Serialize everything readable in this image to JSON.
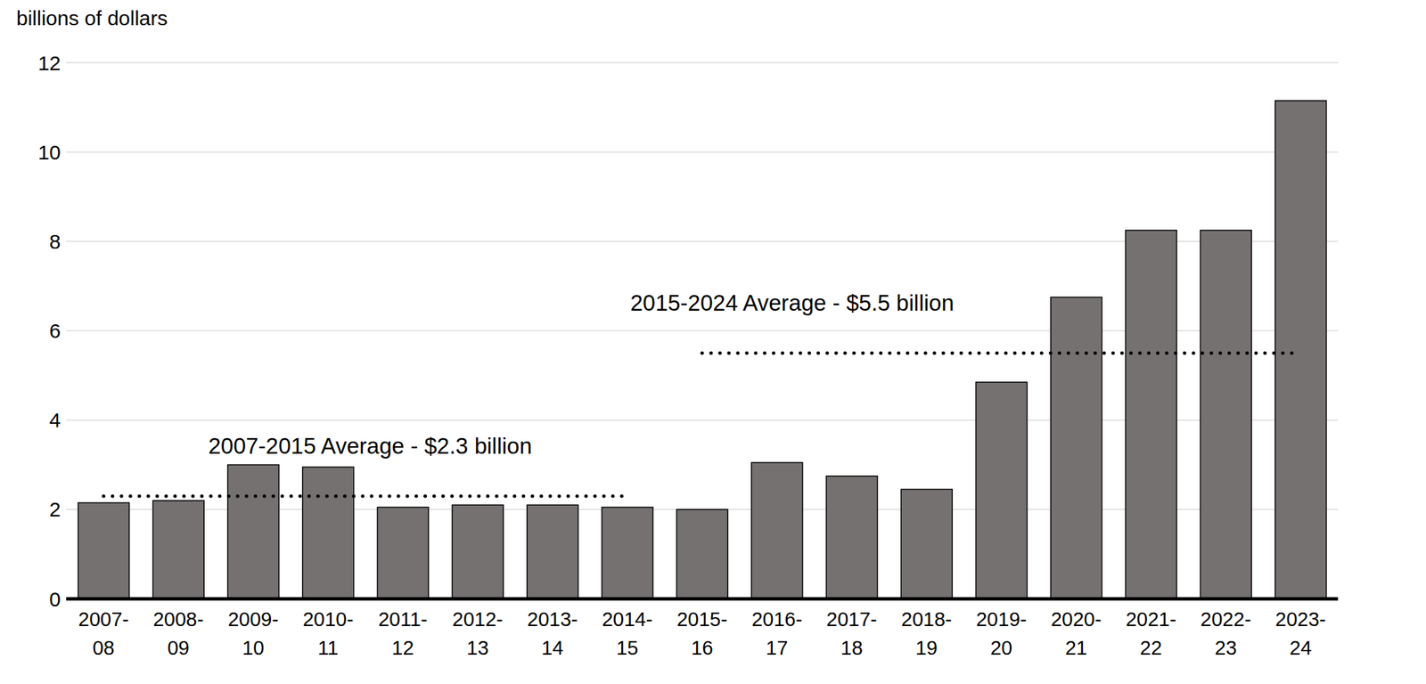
{
  "chart_data": {
    "type": "bar",
    "y_label": "billions of dollars",
    "categories": [
      "2007-08",
      "2008-09",
      "2009-10",
      "2010-11",
      "2011-12",
      "2012-13",
      "2013-14",
      "2014-15",
      "2015-16",
      "2016-17",
      "2017-18",
      "2018-19",
      "2019-20",
      "2020-21",
      "2021-22",
      "2022-23",
      "2023-24"
    ],
    "values": [
      2.15,
      2.2,
      3.0,
      2.95,
      2.05,
      2.1,
      2.1,
      2.05,
      2.0,
      3.05,
      2.75,
      2.45,
      4.85,
      6.75,
      8.25,
      8.25,
      11.15
    ],
    "color": "#767171",
    "ylim": [
      0,
      12
    ],
    "yticks": [
      0,
      2,
      4,
      6,
      8,
      10,
      12
    ],
    "grid": true,
    "annotations": [
      {
        "text": "2007-2015 Average - $2.3 billion",
        "value": 2.3,
        "start": "2007-08",
        "end": "2014-15"
      },
      {
        "text": "2015-2024 Average - $5.5 billion",
        "value": 5.5,
        "start": "2015-16",
        "end": "2023-24"
      }
    ]
  }
}
